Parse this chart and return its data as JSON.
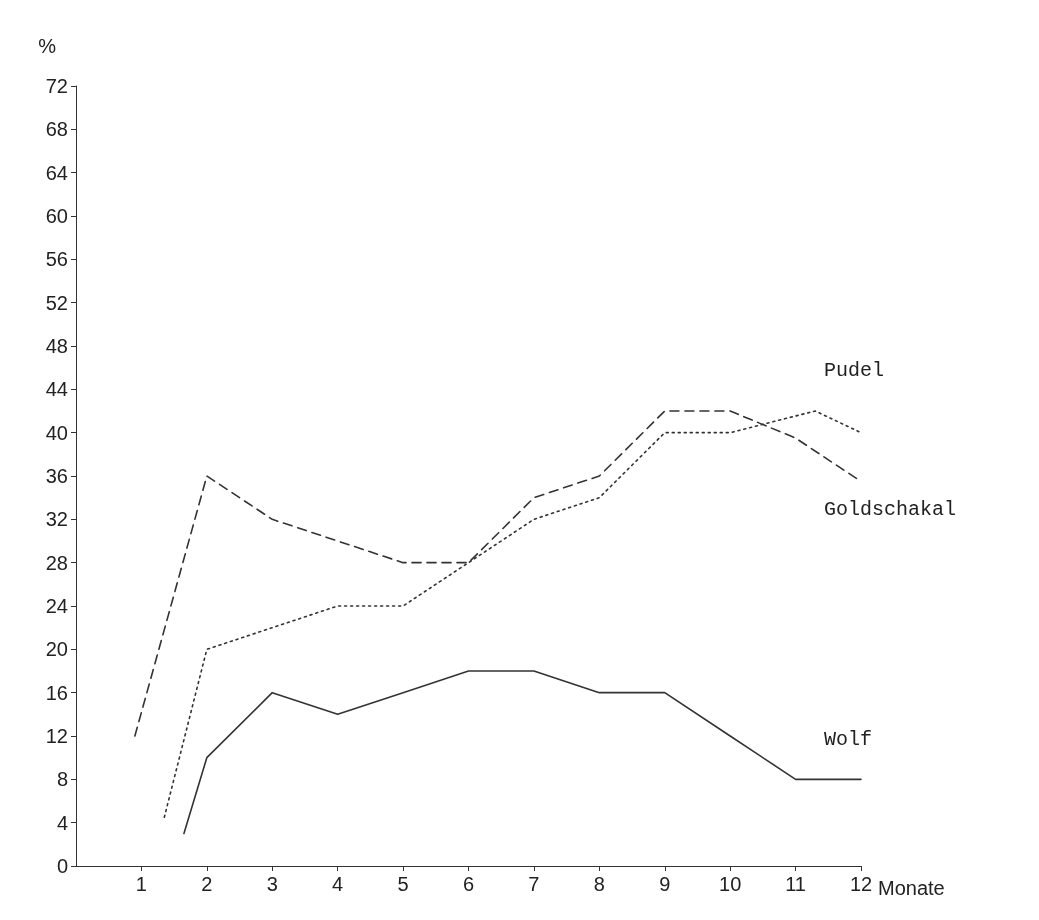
{
  "chart_data": {
    "type": "line",
    "xlabel": "Monate",
    "ylabel": "%",
    "xlim": [
      0,
      12
    ],
    "xticks": [
      1,
      2,
      3,
      4,
      5,
      6,
      7,
      8,
      9,
      10,
      11,
      12
    ],
    "ylim": [
      0,
      72
    ],
    "yticks": [
      0,
      4,
      8,
      12,
      16,
      20,
      24,
      28,
      32,
      36,
      40,
      44,
      48,
      52,
      56,
      60,
      64,
      68,
      72
    ],
    "grid": false,
    "legend": false,
    "marker": "none",
    "series": [
      {
        "name": "Pudel",
        "color": "#333333",
        "line_style": "dotted",
        "x": [
          1.35,
          2,
          3,
          4,
          5,
          6,
          7,
          8,
          9,
          10,
          11.3,
          12
        ],
        "values": [
          4.5,
          20,
          22,
          24,
          24,
          28,
          32,
          34,
          40,
          40,
          42,
          40
        ]
      },
      {
        "name": "Goldschakal",
        "color": "#333333",
        "line_style": "dashed",
        "x": [
          0.9,
          2,
          3,
          4,
          5,
          6,
          7,
          8,
          9,
          10,
          11,
          12
        ],
        "values": [
          12,
          36,
          32,
          30,
          28,
          28,
          34,
          36,
          42,
          42,
          39.5,
          35.5
        ]
      },
      {
        "name": "Wolf",
        "color": "#333333",
        "line_style": "solid",
        "x": [
          1.65,
          2,
          3,
          4,
          5,
          6,
          7,
          8,
          9,
          10,
          11,
          12
        ],
        "values": [
          3,
          10,
          16,
          14,
          16,
          18,
          18,
          16,
          16,
          12,
          8,
          8
        ]
      }
    ]
  }
}
